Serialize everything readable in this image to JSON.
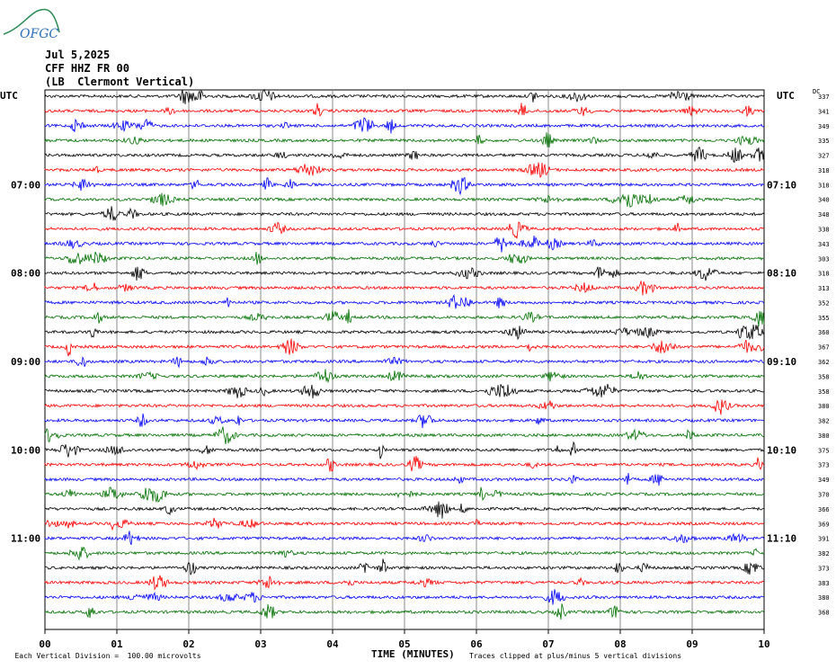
{
  "logo": {
    "text": "OFGC",
    "color": "#2b6fb8",
    "mountain_color": "#2e8b57"
  },
  "header": {
    "date": "Jul 5,2025",
    "station": "CFF HHZ FR 00",
    "location": "(LB  Clermont Vertical)"
  },
  "axis": {
    "left_unit": "UTC",
    "right_unit": "UTC",
    "dc_label": "DC",
    "x_label": "TIME (MINUTES)",
    "x_ticks": [
      "00",
      "01",
      "02",
      "03",
      "04",
      "05",
      "06",
      "07",
      "08",
      "09",
      "10"
    ],
    "left_hour_labels": [
      "07:00",
      "08:00",
      "09:00",
      "10:00",
      "11:00"
    ],
    "right_hour_labels": [
      "07:10",
      "08:10",
      "09:10",
      "10:10",
      "11:10"
    ],
    "hour_label_rows": [
      6,
      12,
      18,
      24,
      30
    ]
  },
  "footer": {
    "left_note": "Each Vertical Division =  100.00 microvolts",
    "right_note": "Traces clipped at plus/minus 5 vertical divisions"
  },
  "chart_data": {
    "type": "line",
    "title": "",
    "xlabel": "TIME (MINUTES)",
    "xlim": [
      0,
      10
    ],
    "trace_colors": [
      "#000000",
      "#ff0000",
      "#0000ff",
      "#007000"
    ],
    "dc_offsets": [
      337,
      341,
      349,
      335,
      327,
      318,
      318,
      340,
      348,
      338,
      343,
      303,
      318,
      313,
      352,
      355,
      360,
      367,
      362,
      358,
      358,
      380,
      382,
      380,
      375,
      373,
      349,
      370,
      366,
      369,
      391,
      382,
      373,
      383,
      380,
      368
    ]
  }
}
